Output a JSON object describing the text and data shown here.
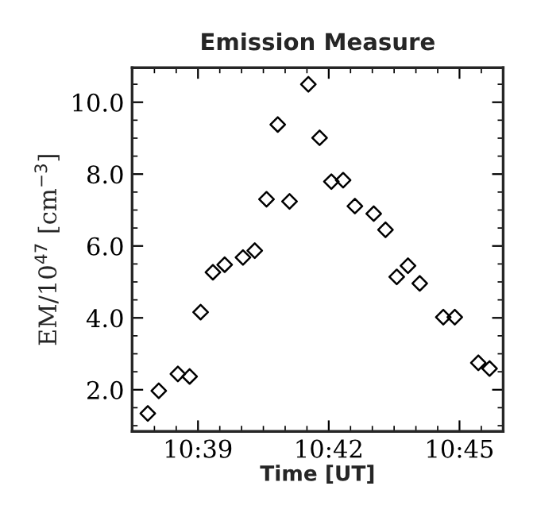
{
  "chart_data": {
    "type": "scatter",
    "title": "Emission Measure",
    "xlabel": "Time [UT]",
    "ylabel": "EM/10$^{47}$ [cm$^{−3}$]",
    "x": [
      10.6308,
      10.635,
      10.6423,
      10.6468,
      10.651,
      10.6557,
      10.6602,
      10.6672,
      10.6717,
      10.6762,
      10.6805,
      10.685,
      10.6922,
      10.6965,
      10.701,
      10.7055,
      10.71,
      10.7172,
      10.7217,
      10.726,
      10.7303,
      10.7348,
      10.7438,
      10.7482,
      10.7572,
      10.7615
    ],
    "values": [
      1.34,
      1.97,
      2.44,
      2.37,
      4.16,
      5.27,
      5.48,
      5.68,
      5.87,
      7.3,
      9.38,
      7.24,
      10.5,
      9.01,
      7.79,
      7.83,
      7.11,
      6.9,
      6.45,
      5.14,
      5.45,
      4.96,
      4.02,
      4.02,
      2.75,
      2.59
    ],
    "color": "#000000",
    "marker": "diamond",
    "grid": false,
    "xlim": [
      10.6248,
      10.7667
    ],
    "xticks": [
      {
        "value": 10.65,
        "label": "10:39"
      },
      {
        "value": 10.7,
        "label": "10:42"
      },
      {
        "value": 10.75,
        "label": "10:45"
      }
    ],
    "ylim": [
      0.84,
      10.96
    ],
    "yticks": [
      {
        "value": 2,
        "label": "2.0"
      },
      {
        "value": 4,
        "label": "4.0"
      },
      {
        "value": 6,
        "label": "6.0"
      },
      {
        "value": 8,
        "label": "8.0"
      },
      {
        "value": 10,
        "label": "10.0"
      }
    ]
  }
}
